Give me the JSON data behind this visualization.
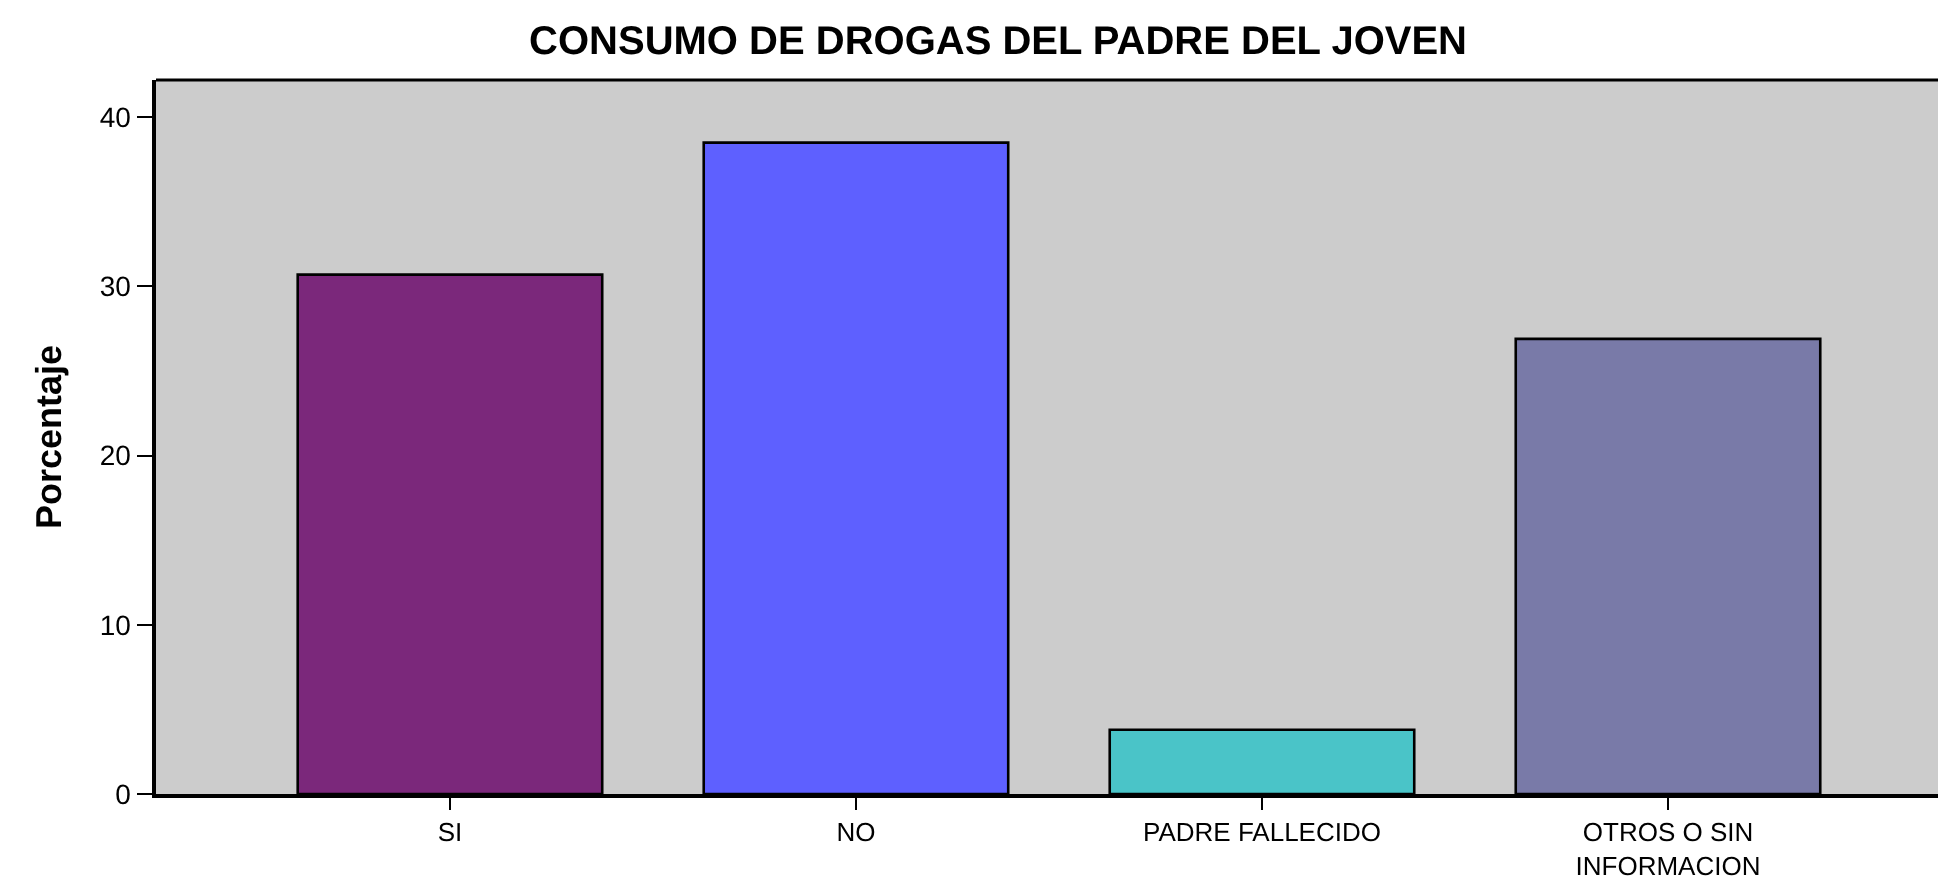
{
  "chart_data": {
    "type": "bar",
    "title": "CONSUMO DE DROGAS DEL PADRE DEL JOVEN",
    "ylabel": "Porcentaje",
    "categories": [
      "SI",
      "NO",
      "PADRE FALLECIDO",
      "OTROS O SIN\nINFORMACION"
    ],
    "values": [
      30.7,
      38.5,
      3.8,
      26.9
    ],
    "colors": [
      "#7b287b",
      "#5e60ff",
      "#4ac4c8",
      "#797aa8"
    ],
    "ylim": [
      0,
      42.2
    ],
    "yticks": [
      0,
      10,
      20,
      30,
      40
    ],
    "grid": false
  }
}
